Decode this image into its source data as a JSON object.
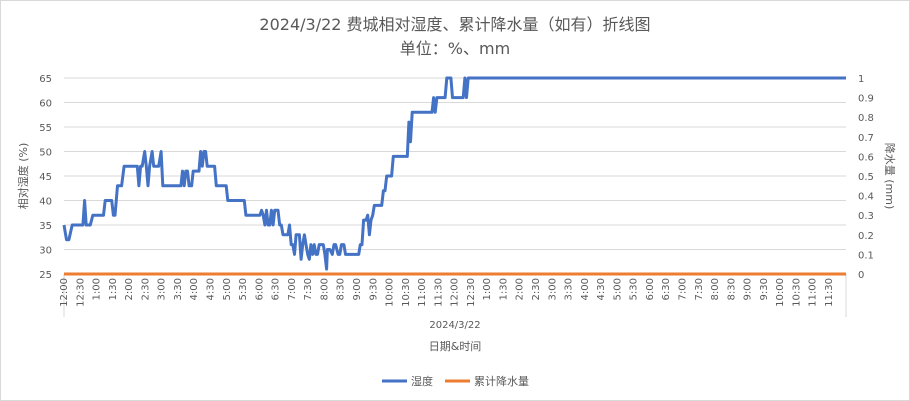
{
  "chart_data": {
    "type": "line",
    "title": "2024/3/22 费城相对湿度、累计降水量（如有）折线图",
    "subtitle": "单位：%、mm",
    "xlabel": "日期&时间",
    "x_group_label": "2024/3/22",
    "ylabel_left": "相对湿度 (%)",
    "ylabel_right": "降水量 (mm)",
    "ylim_left": [
      25,
      65
    ],
    "yticks_left": [
      25,
      30,
      35,
      40,
      45,
      50,
      55,
      60,
      65
    ],
    "ylim_right": [
      0,
      1
    ],
    "yticks_right": [
      "0",
      "0.1",
      "0.2",
      "0.3",
      "0.4",
      "0.5",
      "0.6",
      "0.7",
      "0.8",
      "0.9",
      "1"
    ],
    "x_tick_labels": [
      "12:00",
      "12:30",
      "1:00",
      "1:30",
      "2:00",
      "2:30",
      "3:00",
      "3:30",
      "4:00",
      "4:30",
      "5:00",
      "5:30",
      "6:00",
      "6:30",
      "7:00",
      "7:30",
      "8:00",
      "8:30",
      "9:00",
      "9:30",
      "10:00",
      "10:30",
      "11:00",
      "11:30",
      "12:00",
      "12:30",
      "1:00",
      "1:30",
      "2:00",
      "2:30",
      "3:00",
      "3:30",
      "4:00",
      "4:30",
      "5:00",
      "5:30",
      "6:00",
      "6:30",
      "7:00",
      "7:30",
      "8:00",
      "8:30",
      "9:00",
      "9:30",
      "10:00",
      "10:30",
      "11:00",
      "11:30"
    ],
    "grid": true,
    "legend_position": "bottom",
    "series": [
      {
        "name": "湿度",
        "axis": "left",
        "color": "#4472c4",
        "points": [
          [
            0,
            35
          ],
          [
            0.3,
            32
          ],
          [
            0.6,
            32
          ],
          [
            1,
            35
          ],
          [
            1.5,
            35
          ],
          [
            2,
            35
          ],
          [
            2.3,
            35
          ],
          [
            2.5,
            40
          ],
          [
            2.7,
            35
          ],
          [
            3.2,
            35
          ],
          [
            3.5,
            37
          ],
          [
            4,
            37
          ],
          [
            4.5,
            37
          ],
          [
            4.8,
            37
          ],
          [
            5,
            40
          ],
          [
            5.5,
            40
          ],
          [
            5.8,
            40
          ],
          [
            6,
            37
          ],
          [
            6.2,
            37
          ],
          [
            6.5,
            43
          ],
          [
            7,
            43
          ],
          [
            7.3,
            47
          ],
          [
            8,
            47
          ],
          [
            8.5,
            47
          ],
          [
            8.9,
            47
          ],
          [
            9.1,
            43
          ],
          [
            9.3,
            47
          ],
          [
            9.5,
            47
          ],
          [
            9.8,
            50
          ],
          [
            10,
            47
          ],
          [
            10.2,
            43
          ],
          [
            10.4,
            47
          ],
          [
            10.7,
            50
          ],
          [
            10.9,
            47
          ],
          [
            11.2,
            47
          ],
          [
            11.5,
            47
          ],
          [
            11.8,
            50
          ],
          [
            12,
            43
          ],
          [
            13,
            43
          ],
          [
            13.5,
            43
          ],
          [
            14,
            43
          ],
          [
            14.2,
            43
          ],
          [
            14.4,
            46
          ],
          [
            14.6,
            43
          ],
          [
            14.8,
            46
          ],
          [
            15,
            46
          ],
          [
            15.2,
            43
          ],
          [
            15.5,
            43
          ],
          [
            15.7,
            46
          ],
          [
            16,
            46
          ],
          [
            16.4,
            46
          ],
          [
            16.6,
            50
          ],
          [
            16.8,
            47
          ],
          [
            17,
            50
          ],
          [
            17.2,
            50
          ],
          [
            17.4,
            47
          ],
          [
            17.8,
            47
          ],
          [
            18,
            47
          ],
          [
            18.3,
            47
          ],
          [
            18.5,
            43
          ],
          [
            19,
            43
          ],
          [
            19.5,
            43
          ],
          [
            19.7,
            43
          ],
          [
            19.9,
            40
          ],
          [
            20.5,
            40
          ],
          [
            21,
            40
          ],
          [
            21.5,
            40
          ],
          [
            21.9,
            40
          ],
          [
            22.1,
            37
          ],
          [
            23,
            37
          ],
          [
            23.5,
            37
          ],
          [
            23.8,
            37
          ],
          [
            24,
            38
          ],
          [
            24.2,
            37
          ],
          [
            24.4,
            35
          ],
          [
            24.6,
            38
          ],
          [
            24.8,
            35
          ],
          [
            25,
            35
          ],
          [
            25.2,
            38
          ],
          [
            25.4,
            35
          ],
          [
            25.6,
            38
          ],
          [
            25.8,
            38
          ],
          [
            26,
            38
          ],
          [
            26.2,
            35
          ],
          [
            26.4,
            35
          ],
          [
            26.6,
            33
          ],
          [
            27,
            33
          ],
          [
            27.2,
            33
          ],
          [
            27.4,
            35
          ],
          [
            27.6,
            31
          ],
          [
            27.8,
            31
          ],
          [
            28,
            29
          ],
          [
            28.2,
            33
          ],
          [
            28.4,
            33
          ],
          [
            28.6,
            33
          ],
          [
            28.8,
            28
          ],
          [
            29,
            31
          ],
          [
            29.2,
            33
          ],
          [
            29.4,
            31
          ],
          [
            29.6,
            29
          ],
          [
            29.8,
            28
          ],
          [
            30,
            31
          ],
          [
            30.2,
            29
          ],
          [
            30.4,
            31
          ],
          [
            30.6,
            29
          ],
          [
            30.8,
            29
          ],
          [
            31,
            31
          ],
          [
            31.3,
            31
          ],
          [
            31.5,
            31
          ],
          [
            31.7,
            29
          ],
          [
            31.9,
            26
          ],
          [
            32,
            30
          ],
          [
            32.3,
            30
          ],
          [
            32.6,
            29
          ],
          [
            32.8,
            31
          ],
          [
            33,
            31
          ],
          [
            33.3,
            29
          ],
          [
            33.5,
            29
          ],
          [
            33.7,
            31
          ],
          [
            34,
            31
          ],
          [
            34.2,
            29
          ],
          [
            34.6,
            29
          ],
          [
            35,
            29
          ],
          [
            35.5,
            29
          ],
          [
            35.8,
            29
          ],
          [
            36,
            31
          ],
          [
            36.2,
            31
          ],
          [
            36.4,
            36
          ],
          [
            36.7,
            36
          ],
          [
            36.9,
            37
          ],
          [
            37.1,
            33
          ],
          [
            37.3,
            36
          ],
          [
            37.5,
            37
          ],
          [
            37.7,
            39
          ],
          [
            38,
            39
          ],
          [
            38.3,
            39
          ],
          [
            38.6,
            39
          ],
          [
            38.8,
            42
          ],
          [
            39,
            42
          ],
          [
            39.2,
            45
          ],
          [
            39.5,
            45
          ],
          [
            39.8,
            45
          ],
          [
            40,
            49
          ],
          [
            40.5,
            49
          ],
          [
            41,
            49
          ],
          [
            41.5,
            49
          ],
          [
            41.7,
            49
          ],
          [
            41.9,
            56
          ],
          [
            42.1,
            52
          ],
          [
            42.3,
            58
          ],
          [
            43,
            58
          ],
          [
            44,
            58
          ],
          [
            44.5,
            58
          ],
          [
            44.7,
            58
          ],
          [
            44.9,
            61
          ],
          [
            45.1,
            58
          ],
          [
            45.3,
            61
          ],
          [
            45.7,
            61
          ],
          [
            46,
            61
          ],
          [
            46.3,
            61
          ],
          [
            46.5,
            65
          ],
          [
            46.8,
            65
          ],
          [
            47,
            65
          ],
          [
            47.2,
            61
          ],
          [
            47.7,
            61
          ],
          [
            48,
            61
          ],
          [
            48.3,
            61
          ],
          [
            48.5,
            61
          ],
          [
            48.7,
            65
          ],
          [
            48.9,
            61
          ],
          [
            49.1,
            65
          ],
          [
            49.5,
            65
          ],
          [
            50,
            65
          ],
          [
            51,
            65
          ],
          [
            52,
            65
          ],
          [
            53,
            65
          ],
          [
            54,
            65
          ],
          [
            55,
            65
          ],
          [
            56,
            65
          ],
          [
            57,
            65
          ],
          [
            58,
            65
          ],
          [
            59,
            65
          ],
          [
            60,
            65
          ],
          [
            61,
            65
          ],
          [
            62,
            65
          ],
          [
            63,
            65
          ],
          [
            64,
            65
          ],
          [
            65,
            65
          ],
          [
            66,
            65
          ],
          [
            67,
            65
          ],
          [
            68,
            65
          ],
          [
            69,
            65
          ],
          [
            70,
            65
          ],
          [
            71,
            65
          ],
          [
            72,
            65
          ],
          [
            73,
            65
          ],
          [
            74,
            65
          ],
          [
            75,
            65
          ],
          [
            76,
            65
          ],
          [
            77,
            65
          ],
          [
            78,
            65
          ],
          [
            79,
            65
          ],
          [
            80,
            65
          ],
          [
            81,
            65
          ],
          [
            82,
            65
          ],
          [
            83,
            65
          ],
          [
            84,
            65
          ],
          [
            85,
            65
          ],
          [
            86,
            65
          ],
          [
            87,
            65
          ],
          [
            88,
            65
          ],
          [
            89,
            65
          ],
          [
            90,
            65
          ],
          [
            91,
            65
          ],
          [
            92,
            65
          ],
          [
            93,
            65
          ],
          [
            94,
            65
          ],
          [
            95,
            65
          ]
        ]
      },
      {
        "name": "累计降水量",
        "axis": "right",
        "color": "#ed7d31",
        "points": [
          [
            0,
            0
          ],
          [
            95,
            0
          ]
        ]
      }
    ]
  }
}
